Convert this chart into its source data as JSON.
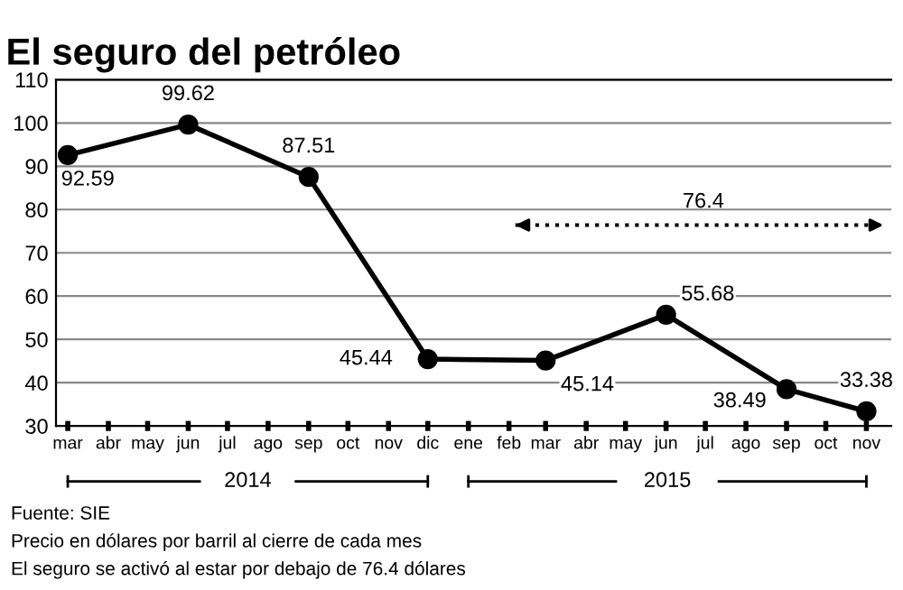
{
  "chart_data": {
    "type": "line",
    "title": "El seguro del petróleo",
    "x": [
      "2014-03",
      "2014-06",
      "2014-09",
      "2014-12",
      "2015-03",
      "2015-06",
      "2015-09",
      "2015-11"
    ],
    "series": [
      {
        "color": "#000000",
        "values": [
          92.59,
          99.62,
          87.51,
          45.44,
          45.14,
          55.68,
          38.49,
          33.38
        ]
      }
    ],
    "data_labels": true,
    "marker": "circle",
    "line_style": "solid",
    "xlim": [
      "2014-02-20",
      "2015-11-20"
    ],
    "xticks": [
      {
        "value": "2014-03",
        "label": "mar"
      },
      {
        "value": "2014-04",
        "label": "abr"
      },
      {
        "value": "2014-05",
        "label": "may"
      },
      {
        "value": "2014-06",
        "label": "jun"
      },
      {
        "value": "2014-07",
        "label": "jul"
      },
      {
        "value": "2014-08",
        "label": "ago"
      },
      {
        "value": "2014-09",
        "label": "sep"
      },
      {
        "value": "2014-10",
        "label": "oct"
      },
      {
        "value": "2014-11",
        "label": "nov"
      },
      {
        "value": "2014-12",
        "label": "dic"
      },
      {
        "value": "2015-01",
        "label": "ene"
      },
      {
        "value": "2015-02",
        "label": "feb"
      },
      {
        "value": "2015-03",
        "label": "mar"
      },
      {
        "value": "2015-04",
        "label": "abr"
      },
      {
        "value": "2015-05",
        "label": "may"
      },
      {
        "value": "2015-06",
        "label": "jun"
      },
      {
        "value": "2015-07",
        "label": "jul"
      },
      {
        "value": "2015-08",
        "label": "ago"
      },
      {
        "value": "2015-09",
        "label": "sep"
      },
      {
        "value": "2015-10",
        "label": "oct"
      },
      {
        "value": "2015-11",
        "label": "nov"
      }
    ],
    "ylim": [
      30,
      110
    ],
    "yticks": [
      30,
      40,
      50,
      60,
      70,
      80,
      90,
      100,
      110
    ],
    "grid": "y",
    "ref_lines": [
      {
        "axis": "y",
        "value": 76.4,
        "label": "76.4",
        "line_style": "dotted"
      }
    ],
    "annotations": [
      "2014",
      "2015",
      "Fuente: SIE",
      "Precio en dólares por barril al cierre de cada mes",
      "El seguro se activó al estar por debajo de 76.4 dólares"
    ]
  }
}
